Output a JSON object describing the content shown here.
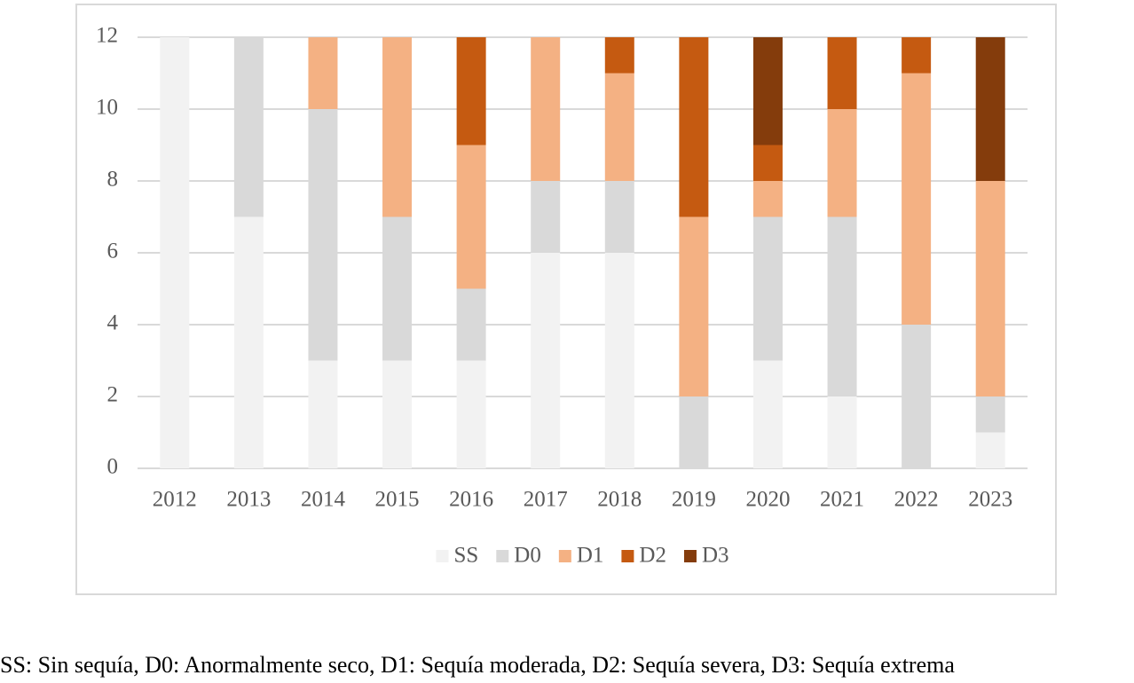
{
  "chart_data": {
    "type": "stacked_bar",
    "categories": [
      "2012",
      "2013",
      "2014",
      "2015",
      "2016",
      "2017",
      "2018",
      "2019",
      "2020",
      "2021",
      "2022",
      "2023"
    ],
    "series": [
      {
        "name": "SS",
        "color": "#f2f2f2",
        "values": [
          12,
          7,
          3,
          3,
          3,
          6,
          6,
          0,
          3,
          2,
          0,
          1
        ]
      },
      {
        "name": "D0",
        "color": "#d9d9d9",
        "values": [
          0,
          5,
          7,
          4,
          2,
          2,
          2,
          2,
          4,
          5,
          4,
          1
        ]
      },
      {
        "name": "D1",
        "color": "#f4b183",
        "values": [
          0,
          0,
          2,
          5,
          4,
          4,
          3,
          5,
          1,
          3,
          7,
          6
        ]
      },
      {
        "name": "D2",
        "color": "#c55a11",
        "values": [
          0,
          0,
          0,
          0,
          3,
          0,
          1,
          5,
          1,
          2,
          1,
          0
        ]
      },
      {
        "name": "D3",
        "color": "#843c0c",
        "values": [
          0,
          0,
          0,
          0,
          0,
          0,
          0,
          0,
          3,
          0,
          0,
          4
        ]
      }
    ],
    "ylim": [
      0,
      12
    ],
    "yticks": [
      0,
      2,
      4,
      6,
      8,
      10,
      12
    ],
    "grid": true,
    "legend": "bottom",
    "caption": "SS: Sin sequía, D0: Anormalmente seco, D1: Sequía moderada, D2: Sequía severa, D3: Sequía extrema"
  }
}
